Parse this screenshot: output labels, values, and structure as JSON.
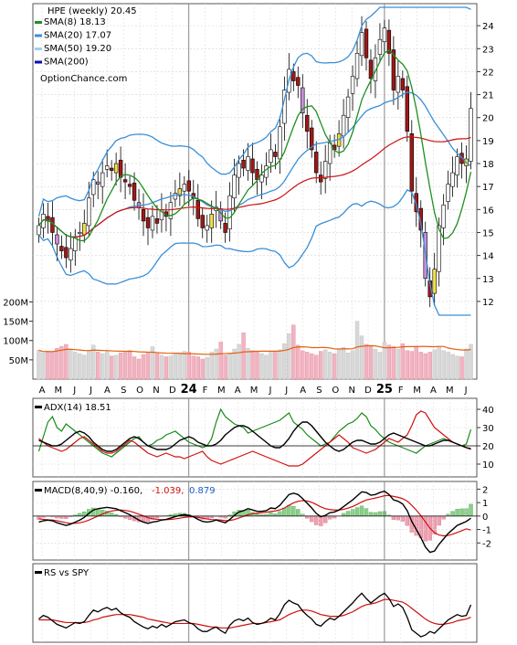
{
  "chart_data": {
    "type": "candlestick",
    "symbol": "HPE",
    "period": "weekly",
    "last_close": 20.45,
    "header_title": "HPE (weekly) 20.45",
    "watermark": "OptionChance.com",
    "legend": [
      {
        "label": "SMA(8) 18.13",
        "color": "#1f8f1f"
      },
      {
        "label": "SMA(20) 17.07",
        "color": "#3a8fd6"
      },
      {
        "label": "SMA(50) 19.20",
        "color": "#9cd0f0"
      },
      {
        "label": "SMA(200)",
        "color": "#0a0ab4"
      }
    ],
    "price_axis": {
      "min": 11.4,
      "max": 24.8,
      "ticks": [
        12,
        13,
        14,
        15,
        16,
        17,
        18,
        19,
        20,
        21,
        22,
        23,
        24
      ]
    },
    "x_axis_months": [
      "A",
      "M",
      "J",
      "J",
      "A",
      "S",
      "O",
      "N",
      "D",
      "24",
      "F",
      "M",
      "A",
      "M",
      "J",
      "J",
      "A",
      "S",
      "O",
      "N",
      "D",
      "25",
      "F",
      "M",
      "A",
      "M",
      "J"
    ],
    "year_markers": [
      "24",
      "25"
    ],
    "price_closes": [
      15.3,
      15.8,
      15.5,
      15.0,
      14.5,
      14.2,
      13.9,
      14.3,
      14.8,
      15.0,
      15.4,
      16.5,
      17.3,
      17.1,
      17.6,
      17.9,
      17.7,
      18.0,
      17.4,
      17.2,
      17.0,
      16.4,
      16.1,
      15.5,
      15.2,
      15.7,
      15.4,
      16.0,
      15.7,
      16.3,
      16.7,
      16.9,
      17.1,
      16.8,
      16.5,
      15.6,
      15.2,
      15.3,
      15.8,
      16.1,
      15.5,
      15.0,
      16.6,
      17.5,
      18.0,
      17.8,
      18.3,
      17.6,
      17.3,
      17.5,
      17.9,
      18.6,
      18.3,
      19.6,
      21.2,
      22.1,
      21.6,
      21.4,
      20.2,
      19.4,
      18.6,
      17.6,
      17.2,
      18.1,
      18.9,
      18.6,
      19.3,
      20.1,
      20.9,
      21.8,
      22.8,
      23.7,
      22.6,
      21.7,
      22.6,
      23.4,
      23.9,
      22.8,
      21.2,
      21.8,
      21.2,
      19.4,
      16.8,
      15.9,
      15.1,
      13.0,
      12.2,
      13.4,
      15.3,
      16.2,
      17.1,
      17.6,
      18.3,
      18.0,
      18.2,
      20.4
    ],
    "volume_axis": {
      "max": 220,
      "ticks_labels": [
        "200M",
        "150M",
        "100M",
        "50M"
      ],
      "tick_values": [
        200,
        150,
        100,
        50
      ]
    },
    "volume": [
      75,
      68,
      72,
      70,
      80,
      85,
      90,
      78,
      70,
      66,
      62,
      73,
      88,
      70,
      66,
      72,
      60,
      62,
      68,
      70,
      74,
      58,
      52,
      64,
      70,
      84,
      66,
      62,
      58,
      60,
      64,
      68,
      72,
      70,
      60,
      58,
      52,
      56,
      70,
      78,
      96,
      62,
      66,
      78,
      90,
      120,
      80,
      74,
      70,
      66,
      62,
      72,
      70,
      76,
      92,
      118,
      140,
      88,
      74,
      70,
      66,
      62,
      72,
      76,
      70,
      66,
      78,
      82,
      68,
      74,
      150,
      112,
      90,
      86,
      78,
      70,
      96,
      88,
      84,
      78,
      92,
      74,
      72,
      84,
      70,
      66,
      70,
      76,
      84,
      74,
      70,
      64,
      60,
      58,
      78,
      90
    ],
    "adx_panel": {
      "label": "ADX(14) 18.51",
      "ticks": [
        10,
        20,
        30,
        40
      ],
      "range": [
        5,
        44
      ],
      "adx": [
        23,
        22,
        21,
        20,
        20,
        21,
        23,
        25,
        27,
        28,
        27,
        25,
        22,
        20,
        18,
        17,
        17,
        18,
        20,
        22,
        24,
        25,
        24,
        22,
        20,
        19,
        18,
        18,
        18,
        19,
        21,
        23,
        24,
        25,
        24,
        22,
        21,
        20,
        20,
        21,
        23,
        26,
        28,
        30,
        31,
        31,
        30,
        28,
        26,
        24,
        22,
        20,
        19,
        19,
        21,
        24,
        28,
        31,
        33,
        33,
        31,
        28,
        25,
        22,
        20,
        18,
        17,
        18,
        20,
        22,
        23,
        23,
        22,
        21,
        21,
        22,
        24,
        26,
        27,
        26,
        25,
        24,
        23,
        22,
        21,
        20,
        20,
        21,
        22,
        23,
        23,
        22,
        21,
        20,
        19,
        18.5
      ],
      "plus_di": [
        17,
        25,
        33,
        36,
        30,
        28,
        32,
        30,
        28,
        26,
        24,
        22,
        20,
        18,
        16,
        15,
        14,
        16,
        18,
        20,
        22,
        24,
        25,
        22,
        20,
        21,
        23,
        24,
        26,
        27,
        28,
        26,
        24,
        22,
        21,
        20,
        19,
        20,
        24,
        33,
        40,
        36,
        34,
        32,
        31,
        30,
        27,
        28,
        29,
        30,
        31,
        32,
        33,
        34,
        36,
        38,
        33,
        31,
        29,
        26,
        24,
        22,
        20,
        21,
        22,
        25,
        28,
        30,
        32,
        33,
        35,
        38,
        36,
        31,
        29,
        26,
        24,
        22,
        21,
        20,
        19,
        18,
        17,
        16,
        18,
        20,
        21,
        22,
        23,
        24,
        23,
        22,
        21,
        20,
        21,
        29
      ],
      "minus_di": [
        24,
        22,
        20,
        19,
        18,
        17,
        18,
        20,
        22,
        24,
        25,
        23,
        21,
        19,
        17,
        16,
        16,
        17,
        19,
        21,
        23,
        22,
        20,
        18,
        16,
        15,
        14,
        15,
        16,
        15,
        14,
        14,
        13,
        14,
        15,
        16,
        17,
        14,
        12,
        11,
        10,
        11,
        12,
        13,
        14,
        15,
        16,
        17,
        16,
        15,
        14,
        13,
        12,
        11,
        10,
        9,
        9,
        9,
        10,
        12,
        14,
        16,
        18,
        20,
        22,
        24,
        26,
        24,
        22,
        19,
        18,
        17,
        16,
        17,
        18,
        20,
        22,
        24,
        23,
        22,
        24,
        26,
        31,
        37,
        39,
        38,
        34,
        30,
        28,
        26,
        24,
        22,
        21,
        20,
        19,
        18
      ]
    },
    "macd_panel": {
      "label": "MACD(8,40,9) -0.160,",
      "value_red": "-1.039,",
      "value_blue": "0.879",
      "ticks": [
        -2,
        -1,
        0,
        1,
        2
      ],
      "range": [
        -3,
        2.3
      ],
      "macd": [
        -0.45,
        -0.35,
        -0.3,
        -0.35,
        -0.5,
        -0.6,
        -0.7,
        -0.6,
        -0.45,
        -0.3,
        -0.1,
        0.2,
        0.45,
        0.55,
        0.6,
        0.65,
        0.6,
        0.55,
        0.4,
        0.25,
        0.1,
        -0.1,
        -0.3,
        -0.45,
        -0.55,
        -0.45,
        -0.4,
        -0.3,
        -0.25,
        -0.15,
        -0.05,
        0.05,
        0.1,
        0.05,
        -0.05,
        -0.25,
        -0.4,
        -0.45,
        -0.4,
        -0.3,
        -0.4,
        -0.5,
        -0.25,
        0.05,
        0.3,
        0.4,
        0.55,
        0.45,
        0.35,
        0.35,
        0.4,
        0.6,
        0.55,
        0.8,
        1.2,
        1.6,
        1.7,
        1.6,
        1.3,
        0.95,
        0.6,
        0.2,
        -0.05,
        0.05,
        0.25,
        0.3,
        0.45,
        0.7,
        0.95,
        1.2,
        1.5,
        1.8,
        1.75,
        1.55,
        1.6,
        1.75,
        1.85,
        1.6,
        1.2,
        1.1,
        0.9,
        0.4,
        -0.4,
        -1.0,
        -1.6,
        -2.3,
        -2.7,
        -2.6,
        -2.1,
        -1.7,
        -1.3,
        -1.0,
        -0.7,
        -0.55,
        -0.4,
        -0.16
      ],
      "signal": [
        -0.2,
        -0.25,
        -0.28,
        -0.3,
        -0.35,
        -0.42,
        -0.5,
        -0.55,
        -0.54,
        -0.5,
        -0.42,
        -0.3,
        -0.15,
        0.0,
        0.15,
        0.28,
        0.37,
        0.43,
        0.45,
        0.42,
        0.36,
        0.26,
        0.14,
        0.01,
        -0.12,
        -0.2,
        -0.25,
        -0.27,
        -0.27,
        -0.25,
        -0.21,
        -0.16,
        -0.1,
        -0.06,
        -0.06,
        -0.1,
        -0.16,
        -0.22,
        -0.26,
        -0.27,
        -0.3,
        -0.34,
        -0.33,
        -0.26,
        -0.14,
        -0.02,
        0.1,
        0.17,
        0.21,
        0.25,
        0.28,
        0.34,
        0.38,
        0.46,
        0.6,
        0.8,
        0.98,
        1.1,
        1.15,
        1.12,
        1.02,
        0.86,
        0.68,
        0.55,
        0.48,
        0.45,
        0.45,
        0.5,
        0.59,
        0.71,
        0.87,
        1.05,
        1.19,
        1.27,
        1.34,
        1.42,
        1.51,
        1.53,
        1.46,
        1.39,
        1.29,
        1.11,
        0.8,
        0.44,
        0.03,
        -0.44,
        -0.9,
        -1.24,
        -1.41,
        -1.47,
        -1.44,
        -1.35,
        -1.22,
        -1.09,
        -0.95,
        -1.04
      ]
    },
    "rs_panel": {
      "label": "RS vs SPY",
      "range": [
        0.2,
        1.0
      ],
      "rs": [
        0.42,
        0.46,
        0.44,
        0.4,
        0.36,
        0.34,
        0.32,
        0.35,
        0.38,
        0.37,
        0.39,
        0.46,
        0.52,
        0.5,
        0.53,
        0.55,
        0.52,
        0.54,
        0.49,
        0.46,
        0.44,
        0.39,
        0.36,
        0.33,
        0.31,
        0.34,
        0.32,
        0.36,
        0.33,
        0.36,
        0.39,
        0.4,
        0.41,
        0.38,
        0.36,
        0.31,
        0.28,
        0.28,
        0.31,
        0.33,
        0.29,
        0.26,
        0.35,
        0.4,
        0.42,
        0.4,
        0.43,
        0.38,
        0.36,
        0.37,
        0.39,
        0.43,
        0.41,
        0.48,
        0.58,
        0.63,
        0.6,
        0.58,
        0.51,
        0.46,
        0.42,
        0.36,
        0.34,
        0.39,
        0.43,
        0.41,
        0.45,
        0.5,
        0.55,
        0.6,
        0.66,
        0.71,
        0.65,
        0.6,
        0.64,
        0.68,
        0.71,
        0.65,
        0.56,
        0.59,
        0.55,
        0.44,
        0.3,
        0.26,
        0.22,
        0.24,
        0.28,
        0.26,
        0.31,
        0.36,
        0.41,
        0.44,
        0.47,
        0.45,
        0.46,
        0.58
      ],
      "rs_ma": [
        0.41,
        0.41,
        0.41,
        0.41,
        0.4,
        0.39,
        0.38,
        0.38,
        0.38,
        0.38,
        0.38,
        0.39,
        0.41,
        0.42,
        0.44,
        0.45,
        0.46,
        0.47,
        0.47,
        0.47,
        0.47,
        0.46,
        0.45,
        0.44,
        0.42,
        0.41,
        0.4,
        0.39,
        0.38,
        0.37,
        0.37,
        0.37,
        0.37,
        0.37,
        0.37,
        0.36,
        0.35,
        0.34,
        0.33,
        0.33,
        0.32,
        0.32,
        0.32,
        0.33,
        0.34,
        0.35,
        0.36,
        0.37,
        0.37,
        0.37,
        0.38,
        0.39,
        0.4,
        0.41,
        0.44,
        0.47,
        0.49,
        0.51,
        0.52,
        0.52,
        0.51,
        0.49,
        0.47,
        0.46,
        0.45,
        0.45,
        0.45,
        0.46,
        0.48,
        0.5,
        0.53,
        0.56,
        0.58,
        0.59,
        0.6,
        0.62,
        0.64,
        0.64,
        0.63,
        0.62,
        0.61,
        0.58,
        0.54,
        0.5,
        0.46,
        0.42,
        0.39,
        0.37,
        0.36,
        0.36,
        0.37,
        0.38,
        0.4,
        0.41,
        0.42,
        0.44
      ]
    },
    "colors": {
      "sma8": "#1f8f1f",
      "sma20": "#3a8fd6",
      "sma50_light": "#9cd0f0",
      "sma50_yellow": "#e8d800",
      "sma200_red": "#cc1010",
      "sma200": "#0a0ab4",
      "up_candle": "#ffffff",
      "down_candle": "#a01818",
      "candle_yellow": "#f2e04a",
      "candle_purple": "#c890d8",
      "volume_up": "#d8d8d8",
      "volume_down": "#f0b4c0",
      "volume_ma": "#e06010",
      "adx": "#000000",
      "plus_di": "#1a8a1a",
      "minus_di": "#d01010",
      "macd": "#000000",
      "macd_signal": "#d01010",
      "hist_pos": "#8ad08a",
      "hist_neg": "#f0a0b0",
      "value_red": "#d01010",
      "value_blue": "#1c5cc8",
      "rs": "#000000",
      "rs_ma": "#d01010"
    }
  }
}
